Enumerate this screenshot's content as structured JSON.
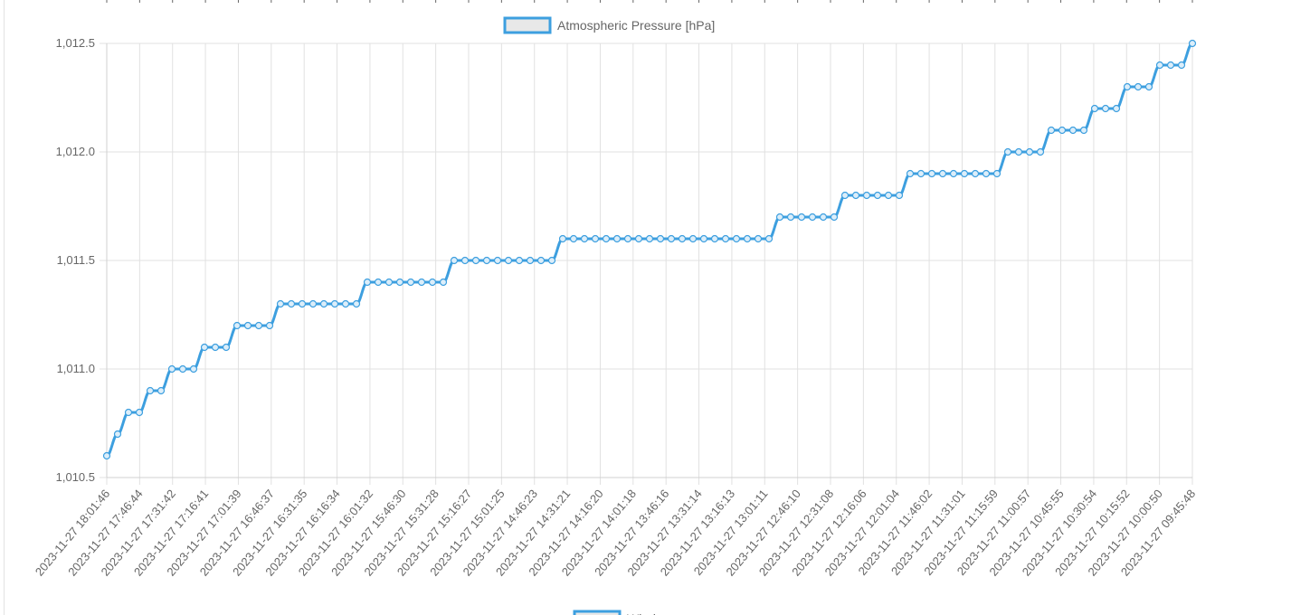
{
  "chart_data": {
    "type": "line",
    "title": "",
    "xlabel": "",
    "ylabel": "",
    "ylim": [
      1010.5,
      1012.5
    ],
    "y_ticks": [
      "1,010.5",
      "1,011.0",
      "1,011.5",
      "1,012.0",
      "1,012.5"
    ],
    "y_tick_values": [
      1010.5,
      1011.0,
      1011.5,
      1012.0,
      1012.5
    ],
    "x_tick_labels": [
      "2023-11-27 18:01:46",
      "2023-11-27 17:46:44",
      "2023-11-27 17:31:42",
      "2023-11-27 17:16:41",
      "2023-11-27 17:01:39",
      "2023-11-27 16:46:37",
      "2023-11-27 16:31:35",
      "2023-11-27 16:16:34",
      "2023-11-27 16:01:32",
      "2023-11-27 15:46:30",
      "2023-11-27 15:31:28",
      "2023-11-27 15:16:27",
      "2023-11-27 15:01:25",
      "2023-11-27 14:46:23",
      "2023-11-27 14:31:21",
      "2023-11-27 14:16:20",
      "2023-11-27 14:01:18",
      "2023-11-27 13:46:16",
      "2023-11-27 13:31:14",
      "2023-11-27 13:16:13",
      "2023-11-27 13:01:11",
      "2023-11-27 12:46:10",
      "2023-11-27 12:31:08",
      "2023-11-27 12:16:06",
      "2023-11-27 12:01:04",
      "2023-11-27 11:46:02",
      "2023-11-27 11:31:01",
      "2023-11-27 11:15:59",
      "2023-11-27 11:00:57",
      "2023-11-27 10:45:55",
      "2023-11-27 10:30:54",
      "2023-11-27 10:15:52",
      "2023-11-27 10:00:50",
      "2023-11-27 09:45:48"
    ],
    "series": [
      {
        "name": "Atmospheric Pressure [hPa]",
        "color": "#3d9fdf",
        "values": [
          1010.6,
          1010.7,
          1010.8,
          1010.8,
          1010.9,
          1010.9,
          1011.0,
          1011.0,
          1011.0,
          1011.1,
          1011.1,
          1011.1,
          1011.2,
          1011.2,
          1011.2,
          1011.2,
          1011.3,
          1011.3,
          1011.3,
          1011.3,
          1011.3,
          1011.3,
          1011.3,
          1011.3,
          1011.4,
          1011.4,
          1011.4,
          1011.4,
          1011.4,
          1011.4,
          1011.4,
          1011.4,
          1011.5,
          1011.5,
          1011.5,
          1011.5,
          1011.5,
          1011.5,
          1011.5,
          1011.5,
          1011.5,
          1011.5,
          1011.6,
          1011.6,
          1011.6,
          1011.6,
          1011.6,
          1011.6,
          1011.6,
          1011.6,
          1011.6,
          1011.6,
          1011.6,
          1011.6,
          1011.6,
          1011.6,
          1011.6,
          1011.6,
          1011.6,
          1011.6,
          1011.6,
          1011.6,
          1011.7,
          1011.7,
          1011.7,
          1011.7,
          1011.7,
          1011.7,
          1011.8,
          1011.8,
          1011.8,
          1011.8,
          1011.8,
          1011.8,
          1011.9,
          1011.9,
          1011.9,
          1011.9,
          1011.9,
          1011.9,
          1011.9,
          1011.9,
          1011.9,
          1012.0,
          1012.0,
          1012.0,
          1012.0,
          1012.1,
          1012.1,
          1012.1,
          1012.1,
          1012.2,
          1012.2,
          1012.2,
          1012.3,
          1012.3,
          1012.3,
          1012.4,
          1012.4,
          1012.4,
          1012.5
        ]
      }
    ],
    "grid": true,
    "legend": "top-center"
  },
  "next_chart_legend": {
    "label": "Wind",
    "color": "#3d9fdf"
  }
}
